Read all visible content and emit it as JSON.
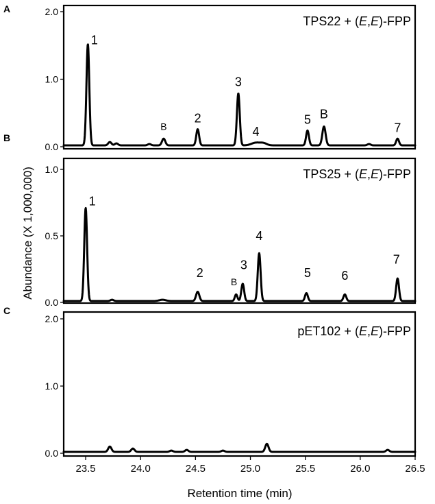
{
  "chart_data": {
    "type": "line",
    "xlabel": "Retention time (min)",
    "ylabel": "Abundance (X 1,000,000)",
    "xlim": [
      23.3,
      26.5
    ],
    "xticks": [
      "23.5",
      "24.0",
      "24.5",
      "25.0",
      "25.5",
      "26.0",
      "26.5"
    ],
    "panels": [
      {
        "letter": "A",
        "title_parts": [
          "TPS22 + (",
          "E",
          ",",
          "E",
          ")-FPP"
        ],
        "ylim": [
          0,
          2.0
        ],
        "yticks": [
          "0.0",
          "1.0",
          "2.0"
        ],
        "baseline": 0.02,
        "peaks": [
          {
            "x": 23.52,
            "height": 1.5,
            "width": 0.013
          },
          {
            "x": 23.72,
            "height": 0.05,
            "width": 0.015
          },
          {
            "x": 23.78,
            "height": 0.03,
            "width": 0.015
          },
          {
            "x": 24.08,
            "height": 0.02,
            "width": 0.015
          },
          {
            "x": 24.21,
            "height": 0.1,
            "width": 0.015
          },
          {
            "x": 24.52,
            "height": 0.24,
            "width": 0.013
          },
          {
            "x": 24.89,
            "height": 0.77,
            "width": 0.013
          },
          {
            "x": 25.05,
            "height": 0.04,
            "width": 0.04
          },
          {
            "x": 25.12,
            "height": 0.03,
            "width": 0.03
          },
          {
            "x": 25.52,
            "height": 0.22,
            "width": 0.013
          },
          {
            "x": 25.67,
            "height": 0.28,
            "width": 0.015
          },
          {
            "x": 26.08,
            "height": 0.02,
            "width": 0.015
          },
          {
            "x": 26.34,
            "height": 0.1,
            "width": 0.013
          }
        ],
        "labels": [
          {
            "text": "1",
            "x": 23.58,
            "y": 1.52
          },
          {
            "text": "B",
            "x": 24.21,
            "y": 0.25,
            "small": true
          },
          {
            "text": "2",
            "x": 24.52,
            "y": 0.36
          },
          {
            "text": "3",
            "x": 24.89,
            "y": 0.9
          },
          {
            "text": "4",
            "x": 25.05,
            "y": 0.16
          },
          {
            "text": "5",
            "x": 25.52,
            "y": 0.34
          },
          {
            "text": "B",
            "x": 25.67,
            "y": 0.42
          },
          {
            "text": "7",
            "x": 26.34,
            "y": 0.22
          }
        ]
      },
      {
        "letter": "B",
        "title_parts": [
          "TPS25 + (",
          "E",
          ",",
          "E",
          ")-FPP"
        ],
        "ylim": [
          0,
          1.0
        ],
        "yticks": [
          "0.0",
          "0.5",
          "1.0"
        ],
        "baseline": 0.01,
        "peaks": [
          {
            "x": 23.5,
            "height": 0.7,
            "width": 0.013
          },
          {
            "x": 23.74,
            "height": 0.01,
            "width": 0.015
          },
          {
            "x": 24.2,
            "height": 0.01,
            "width": 0.03
          },
          {
            "x": 24.52,
            "height": 0.07,
            "width": 0.015
          },
          {
            "x": 24.87,
            "height": 0.05,
            "width": 0.012
          },
          {
            "x": 24.93,
            "height": 0.13,
            "width": 0.013
          },
          {
            "x": 25.08,
            "height": 0.36,
            "width": 0.013
          },
          {
            "x": 25.51,
            "height": 0.06,
            "width": 0.013
          },
          {
            "x": 25.86,
            "height": 0.05,
            "width": 0.013
          },
          {
            "x": 26.34,
            "height": 0.17,
            "width": 0.013
          }
        ],
        "labels": [
          {
            "text": "1",
            "x": 23.56,
            "y": 0.73
          },
          {
            "text": "2",
            "x": 24.54,
            "y": 0.19
          },
          {
            "text": "B",
            "x": 24.85,
            "y": 0.13,
            "small": true
          },
          {
            "text": "3",
            "x": 24.94,
            "y": 0.25
          },
          {
            "text": "4",
            "x": 25.08,
            "y": 0.47
          },
          {
            "text": "5",
            "x": 25.52,
            "y": 0.19
          },
          {
            "text": "6",
            "x": 25.86,
            "y": 0.17
          },
          {
            "text": "7",
            "x": 26.33,
            "y": 0.29
          }
        ]
      },
      {
        "letter": "C",
        "title_parts": [
          "pET102 + (",
          "E",
          ",",
          "E",
          ")-FPP"
        ],
        "ylim": [
          0,
          2.0
        ],
        "yticks": [
          "0.0",
          "1.0",
          "2.0"
        ],
        "baseline": 0.02,
        "peaks": [
          {
            "x": 23.72,
            "height": 0.08,
            "width": 0.015
          },
          {
            "x": 23.93,
            "height": 0.05,
            "width": 0.015
          },
          {
            "x": 24.28,
            "height": 0.02,
            "width": 0.015
          },
          {
            "x": 24.42,
            "height": 0.03,
            "width": 0.015
          },
          {
            "x": 24.75,
            "height": 0.02,
            "width": 0.015
          },
          {
            "x": 25.15,
            "height": 0.12,
            "width": 0.015
          },
          {
            "x": 26.25,
            "height": 0.03,
            "width": 0.015
          }
        ],
        "labels": []
      }
    ]
  }
}
